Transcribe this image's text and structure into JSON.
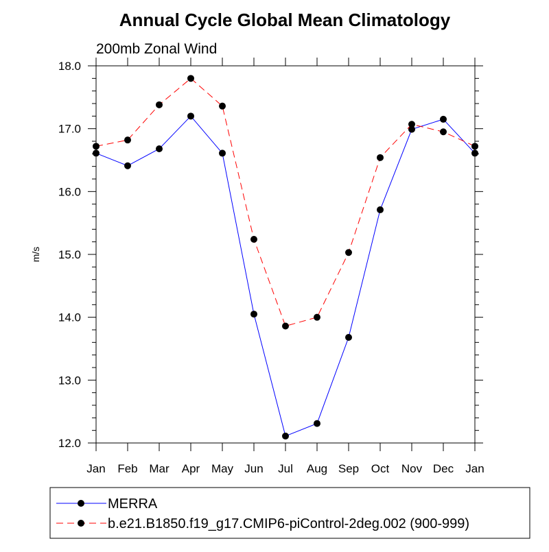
{
  "chart_data": {
    "type": "line",
    "title": "Annual Cycle Global Mean Climatology",
    "subtitle": "200mb Zonal Wind",
    "xlabel": "",
    "ylabel": "m/s",
    "categories": [
      "Jan",
      "Feb",
      "Mar",
      "Apr",
      "May",
      "Jun",
      "Jul",
      "Aug",
      "Sep",
      "Oct",
      "Nov",
      "Dec",
      "Jan"
    ],
    "ylim": [
      12.0,
      18.0
    ],
    "yticks": [
      "12.0",
      "13.0",
      "14.0",
      "15.0",
      "16.0",
      "17.0",
      "18.0"
    ],
    "grid": false,
    "legend_position": "bottom",
    "series": [
      {
        "name": "MERRA",
        "color": "#0000ff",
        "line_style": "solid",
        "marker": "filled-circle",
        "values": [
          16.61,
          16.41,
          16.68,
          17.2,
          16.61,
          14.05,
          12.11,
          12.31,
          13.68,
          15.71,
          16.99,
          17.15,
          16.61
        ]
      },
      {
        "name": "b.e21.B1850.f19_g17.CMIP6-piControl-2deg.002 (900-999)",
        "color": "#ff0000",
        "line_style": "dashed",
        "marker": "filled-circle",
        "values": [
          16.72,
          16.82,
          17.38,
          17.8,
          17.36,
          15.24,
          13.86,
          14.0,
          15.03,
          16.54,
          17.07,
          16.95,
          16.72
        ]
      }
    ]
  }
}
